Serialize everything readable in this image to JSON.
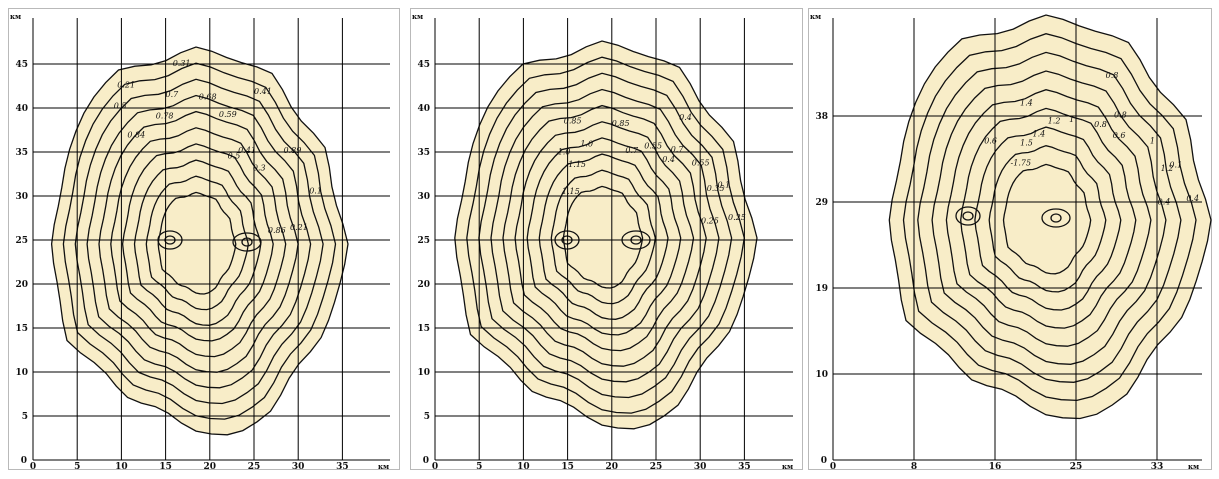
{
  "panels": [
    {
      "id": "p1",
      "unit_y": "км",
      "unit_x": "км",
      "x_ticks": [
        "0",
        "5",
        "10",
        "15",
        "20",
        "25",
        "30",
        "35"
      ],
      "y_ticks": [
        "0",
        "5",
        "10",
        "15",
        "20",
        "25",
        "30",
        "35",
        "40",
        "45"
      ],
      "contour_labels": [
        "0.1",
        "0.21",
        "0.3",
        "0.41",
        "0.5",
        "0.59",
        "0.68",
        "0.7",
        "0.78",
        "0.84",
        "0.86",
        "0.89",
        "0.21",
        "0.31",
        "0.41",
        "0.5"
      ],
      "label_spots": [
        [
          17,
          0.88
        ],
        [
          8,
          0.7
        ],
        [
          40,
          0.6
        ],
        [
          55,
          0.59
        ],
        [
          62,
          0.5
        ],
        [
          74,
          0.7
        ],
        [
          85,
          0.75
        ],
        [
          100,
          0.8
        ],
        [
          110,
          0.7
        ],
        [
          124,
          0.66
        ],
        [
          5,
          0.55
        ],
        [
          33,
          0.82
        ],
        [
          118,
          0.9
        ],
        [
          95,
          0.93
        ],
        [
          60,
          0.88
        ],
        [
          128,
          0.84
        ]
      ]
    },
    {
      "id": "p2",
      "unit_y": "км",
      "unit_x": "км",
      "x_ticks": [
        "0",
        "5",
        "10",
        "15",
        "20",
        "25",
        "30",
        "35"
      ],
      "y_ticks": [
        "0",
        "5",
        "10",
        "15",
        "20",
        "25",
        "30",
        "35",
        "40",
        "45"
      ],
      "contour_labels": [
        "0.1",
        "0.25",
        "0.4",
        "0.55",
        "0.7",
        "0.85",
        "1.0",
        "1.15",
        "1.15",
        "0.25",
        "0.35",
        "0.55",
        "0.7",
        "0.85",
        "1.0",
        "0.4"
      ],
      "label_spots": [
        [
          17,
          0.88
        ],
        [
          8,
          0.72
        ],
        [
          40,
          0.62
        ],
        [
          55,
          0.58
        ],
        [
          64,
          0.48
        ],
        [
          80,
          0.6
        ],
        [
          102,
          0.5
        ],
        [
          115,
          0.4
        ],
        [
          130,
          0.3
        ],
        [
          4,
          0.9
        ],
        [
          20,
          0.82
        ],
        [
          30,
          0.75
        ],
        [
          43,
          0.7
        ],
        [
          110,
          0.64
        ],
        [
          122,
          0.48
        ],
        [
          45,
          0.86
        ]
      ]
    },
    {
      "id": "p3",
      "unit_y": "км",
      "unit_x": "км",
      "x_ticks": [
        "0",
        "8",
        "16",
        "25",
        "33"
      ],
      "y_ticks": [
        "0",
        "10",
        "19",
        "29",
        "38"
      ],
      "contour_labels": [
        "0.1",
        "0.4",
        "0.6",
        "0.8",
        "1",
        "1.2",
        "1.4",
        "1.5",
        "-1.75",
        "1.4",
        "1.2",
        "1",
        "0.8",
        "0.6",
        "0.4",
        "0.8"
      ],
      "label_spots": [
        [
          17,
          0.88
        ],
        [
          8,
          0.74
        ],
        [
          40,
          0.64
        ],
        [
          55,
          0.58
        ],
        [
          72,
          0.52
        ],
        [
          86,
          0.48
        ],
        [
          98,
          0.42
        ],
        [
          108,
          0.4
        ],
        [
          120,
          0.3
        ],
        [
          104,
          0.6
        ],
        [
          15,
          0.82
        ],
        [
          30,
          0.76
        ],
        [
          45,
          0.72
        ],
        [
          130,
          0.5
        ],
        [
          4,
          0.92
        ],
        [
          62,
          0.8
        ]
      ]
    }
  ]
}
